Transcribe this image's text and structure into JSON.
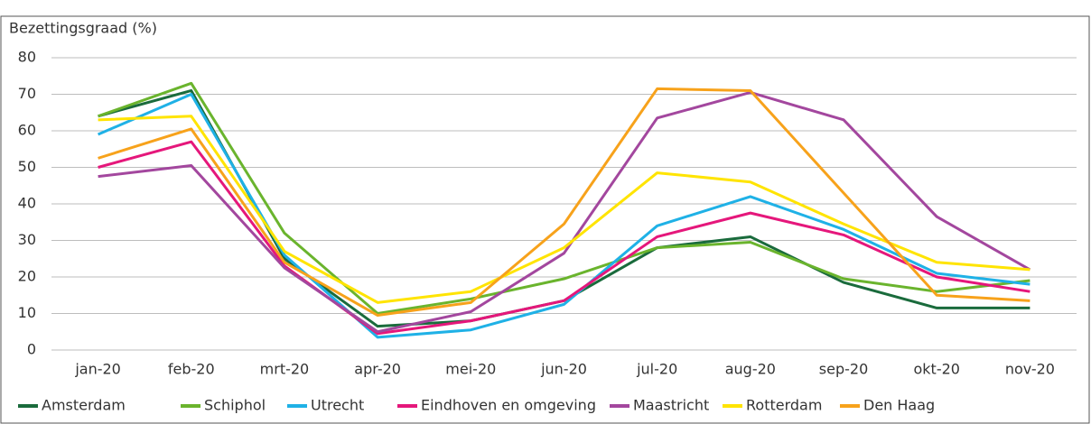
{
  "chart_data": {
    "type": "line",
    "y_label": "Bezettingsgraad  (%)",
    "categories": [
      "jan-20",
      "feb-20",
      "mrt-20",
      "apr-20",
      "mei-20",
      "jun-20",
      "jul-20",
      "aug-20",
      "sep-20",
      "okt-20",
      "nov-20"
    ],
    "series": [
      {
        "name": "Amsterdam",
        "color": "#1a6b3c",
        "values": [
          64,
          71,
          25,
          6.5,
          8,
          13.5,
          28,
          31,
          18.5,
          11.5,
          11.5
        ]
      },
      {
        "name": "Schiphol",
        "color": "#6ab42d",
        "values": [
          64,
          73,
          32,
          10,
          14,
          19.5,
          28,
          29.5,
          19.5,
          16,
          19
        ]
      },
      {
        "name": "Utrecht",
        "color": "#1fb1e6",
        "values": [
          59,
          70,
          26,
          3.5,
          5.5,
          12.5,
          34,
          42,
          33,
          21,
          18
        ]
      },
      {
        "name": "Eindhoven en omgeving",
        "color": "#e5177b",
        "values": [
          50,
          57,
          23,
          4.5,
          8,
          13.5,
          31,
          37.5,
          31.5,
          20,
          16
        ]
      },
      {
        "name": "Maastricht",
        "color": "#a3479e",
        "values": [
          47.5,
          50.5,
          22.5,
          5,
          10.5,
          26.5,
          63.5,
          70.5,
          63,
          36.5,
          22
        ]
      },
      {
        "name": "Rotterdam",
        "color": "#ffe400",
        "values": [
          63,
          64,
          27,
          13,
          16,
          28,
          48.5,
          46,
          34.5,
          24,
          22
        ]
      },
      {
        "name": "Den Haag",
        "color": "#f7a21b",
        "values": [
          52.5,
          60.5,
          24,
          9.5,
          13,
          34.5,
          71.5,
          71,
          43,
          15,
          13.5
        ]
      }
    ],
    "ylim": [
      0,
      80
    ],
    "yticks": [
      0,
      10,
      20,
      30,
      40,
      50,
      60,
      70,
      80
    ],
    "grid": true
  }
}
